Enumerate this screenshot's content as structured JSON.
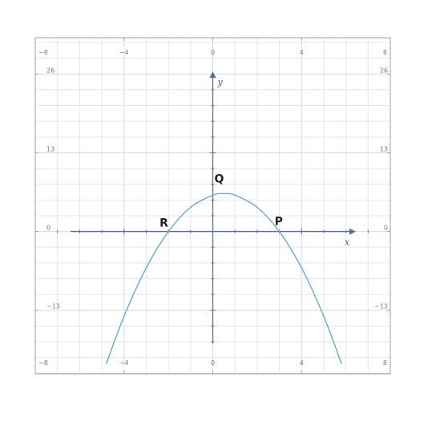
{
  "chart_data": {
    "type": "line",
    "title": "",
    "xlabel": "x",
    "ylabel": "y",
    "xlim": [
      -8,
      8
    ],
    "ylim": [
      -23.5,
      32
    ],
    "grid": true,
    "x_ticks": [
      {
        "value": -8,
        "label": "−8"
      },
      {
        "value": -4,
        "label": "−4"
      },
      {
        "value": 0,
        "label": "0"
      },
      {
        "value": 4,
        "label": "4"
      },
      {
        "value": 8,
        "label": "8"
      }
    ],
    "y_ticks": [
      {
        "value": 26,
        "label": "26"
      },
      {
        "value": 13,
        "label": "13"
      },
      {
        "value": 0,
        "label": "0"
      },
      {
        "value": -13,
        "label": "−13"
      }
    ],
    "series": [
      {
        "x": [
          -4.8,
          -4,
          -3,
          -2,
          -1,
          0,
          0.5,
          1,
          2,
          3,
          4,
          5,
          5.8
        ],
        "y": [
          -21.84,
          -14,
          -6,
          0,
          4,
          6,
          6.25,
          6,
          4,
          0,
          -6,
          -14,
          -21.84
        ],
        "color": "#6aa6d6"
      }
    ],
    "points": [
      {
        "label": "R",
        "x": -2,
        "y": 0
      },
      {
        "label": "Q",
        "x": 0,
        "y": 6
      },
      {
        "label": "P",
        "x": 3,
        "y": 0
      }
    ],
    "colors": {
      "grid": "#e2e6ec",
      "frame": "#8fa0b2",
      "axis": "#5a6e92",
      "curve": "#6aa6d6"
    }
  }
}
